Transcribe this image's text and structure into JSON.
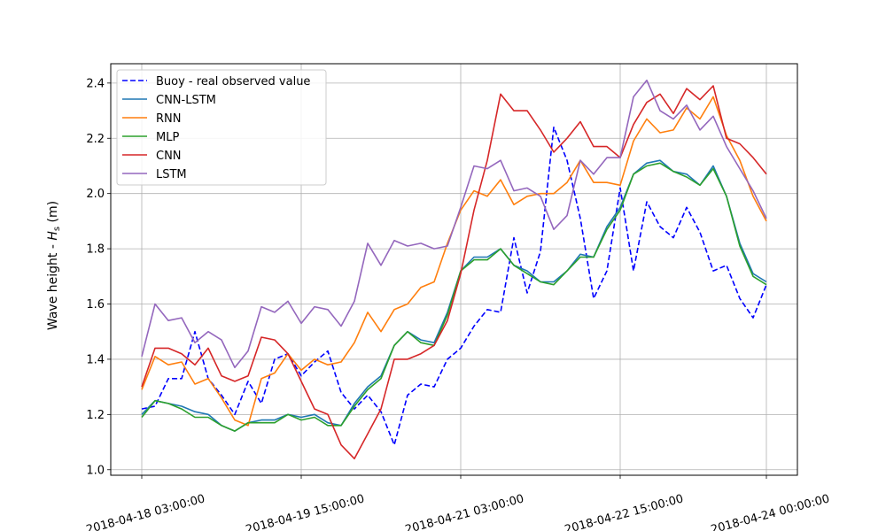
{
  "chart_data": {
    "type": "line",
    "title": "",
    "xlabel": "",
    "ylabel": "Wave height - ",
    "ylabel_symbol": "H",
    "ylabel_subscript": "s",
    "ylabel_unit": " (m)",
    "ylim": [
      0.98,
      2.47
    ],
    "yticks": [
      1.0,
      1.2,
      1.4,
      1.6,
      1.8,
      2.0,
      2.2,
      2.4
    ],
    "ytick_labels": [
      "1.0",
      "1.2",
      "1.4",
      "1.6",
      "1.8",
      "2.0",
      "2.2",
      "2.4"
    ],
    "xticks": [
      0,
      12,
      24,
      36,
      47
    ],
    "xtick_labels": [
      "2018-04-18 03:00:00",
      "2018-04-19 15:00:00",
      "2018-04-21 03:00:00",
      "2018-04-22 15:00:00",
      "2018-04-24 00:00:00"
    ],
    "x_interval": "3 hours",
    "x_start": "2018-04-18 03:00:00",
    "grid": true,
    "legend_position": "top-left",
    "series": [
      {
        "name": "Buoy - real observed value",
        "color": "#0000ff",
        "dash": "dashed",
        "values": [
          1.22,
          1.23,
          1.33,
          1.33,
          1.5,
          1.33,
          1.27,
          1.2,
          1.32,
          1.24,
          1.4,
          1.42,
          1.34,
          1.39,
          1.43,
          1.28,
          1.22,
          1.27,
          1.21,
          1.09,
          1.27,
          1.31,
          1.3,
          1.4,
          1.44,
          1.52,
          1.58,
          1.57,
          1.84,
          1.64,
          1.79,
          2.24,
          2.12,
          1.91,
          1.62,
          1.72,
          2.02,
          1.72,
          1.97,
          1.88,
          1.84,
          1.95,
          1.86,
          1.72,
          1.74,
          1.62,
          1.55,
          1.67
        ]
      },
      {
        "name": "CNN-LSTM",
        "color": "#1f77b4",
        "dash": "solid",
        "values": [
          1.2,
          1.25,
          1.24,
          1.23,
          1.21,
          1.2,
          1.16,
          1.14,
          1.17,
          1.18,
          1.18,
          1.2,
          1.19,
          1.2,
          1.17,
          1.16,
          1.24,
          1.3,
          1.34,
          1.45,
          1.5,
          1.47,
          1.46,
          1.57,
          1.72,
          1.77,
          1.77,
          1.8,
          1.74,
          1.72,
          1.68,
          1.68,
          1.72,
          1.78,
          1.77,
          1.88,
          1.95,
          2.07,
          2.11,
          2.12,
          2.08,
          2.07,
          2.03,
          2.1,
          1.99,
          1.82,
          1.71,
          1.68
        ]
      },
      {
        "name": "RNN",
        "color": "#ff7f0e",
        "dash": "solid",
        "values": [
          1.29,
          1.41,
          1.38,
          1.39,
          1.31,
          1.33,
          1.26,
          1.18,
          1.16,
          1.33,
          1.35,
          1.42,
          1.36,
          1.4,
          1.38,
          1.39,
          1.46,
          1.57,
          1.5,
          1.58,
          1.6,
          1.66,
          1.68,
          1.82,
          1.94,
          2.01,
          1.99,
          2.05,
          1.96,
          1.99,
          2.0,
          2.0,
          2.04,
          2.12,
          2.04,
          2.04,
          2.03,
          2.19,
          2.27,
          2.22,
          2.23,
          2.31,
          2.27,
          2.35,
          2.21,
          2.12,
          1.99,
          1.9
        ]
      },
      {
        "name": "MLP",
        "color": "#2ca02c",
        "dash": "solid",
        "values": [
          1.19,
          1.25,
          1.24,
          1.22,
          1.19,
          1.19,
          1.16,
          1.14,
          1.17,
          1.17,
          1.17,
          1.2,
          1.18,
          1.19,
          1.16,
          1.16,
          1.23,
          1.29,
          1.33,
          1.45,
          1.5,
          1.46,
          1.45,
          1.56,
          1.72,
          1.76,
          1.76,
          1.8,
          1.74,
          1.71,
          1.68,
          1.67,
          1.72,
          1.77,
          1.77,
          1.87,
          1.94,
          2.07,
          2.1,
          2.11,
          2.08,
          2.06,
          2.03,
          2.09,
          1.99,
          1.81,
          1.7,
          1.67
        ]
      },
      {
        "name": "CNN",
        "color": "#d62728",
        "dash": "solid",
        "values": [
          1.3,
          1.44,
          1.44,
          1.42,
          1.38,
          1.44,
          1.34,
          1.32,
          1.34,
          1.48,
          1.47,
          1.42,
          1.32,
          1.22,
          1.2,
          1.09,
          1.04,
          1.13,
          1.22,
          1.4,
          1.4,
          1.42,
          1.45,
          1.54,
          1.71,
          1.94,
          2.12,
          2.36,
          2.3,
          2.3,
          2.23,
          2.15,
          2.2,
          2.26,
          2.17,
          2.17,
          2.13,
          2.25,
          2.33,
          2.36,
          2.29,
          2.38,
          2.34,
          2.39,
          2.2,
          2.18,
          2.13,
          2.07
        ]
      },
      {
        "name": "LSTM",
        "color": "#9467bd",
        "dash": "solid",
        "values": [
          1.41,
          1.6,
          1.54,
          1.55,
          1.46,
          1.5,
          1.47,
          1.37,
          1.43,
          1.59,
          1.57,
          1.61,
          1.53,
          1.59,
          1.58,
          1.52,
          1.61,
          1.82,
          1.74,
          1.83,
          1.81,
          1.82,
          1.8,
          1.81,
          1.95,
          2.1,
          2.09,
          2.12,
          2.01,
          2.02,
          1.99,
          1.87,
          1.92,
          2.12,
          2.07,
          2.13,
          2.13,
          2.35,
          2.41,
          2.3,
          2.27,
          2.32,
          2.23,
          2.28,
          2.17,
          2.09,
          2.01,
          1.91
        ]
      }
    ]
  }
}
